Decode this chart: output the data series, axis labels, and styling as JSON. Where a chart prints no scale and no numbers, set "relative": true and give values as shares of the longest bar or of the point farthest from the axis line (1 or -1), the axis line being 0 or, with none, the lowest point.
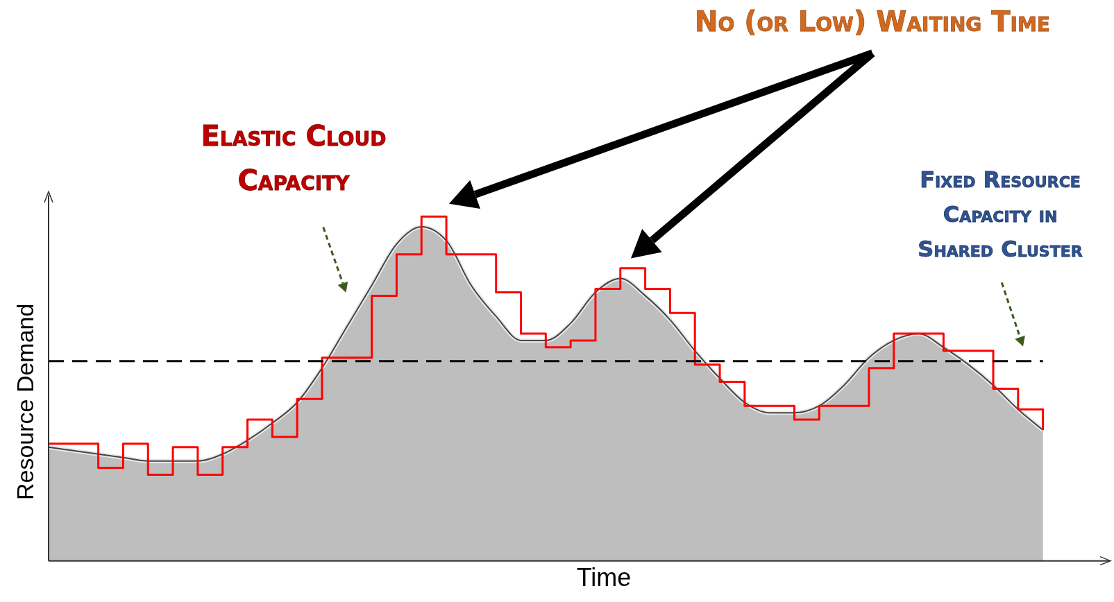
{
  "chart_data": {
    "type": "area",
    "xlabel": "Time",
    "ylabel": "Resource Demand",
    "relative": true,
    "marker": "none",
    "categories": [
      null,
      null,
      null,
      null,
      null,
      null,
      null,
      null,
      null,
      null,
      null,
      null,
      null,
      null,
      null,
      null,
      null,
      null,
      null,
      null,
      null,
      null,
      null,
      null,
      null,
      null,
      null,
      null,
      null,
      null,
      null,
      null,
      null,
      null,
      null,
      null,
      null,
      null,
      null,
      null,
      null
    ],
    "series": [
      {
        "color": "#bebebe",
        "values": [
          0.33,
          0.32,
          0.31,
          0.3,
          0.29,
          0.29,
          0.29,
          0.31,
          0.35,
          0.4,
          0.46,
          0.56,
          0.68,
          0.8,
          0.92,
          0.97,
          0.93,
          0.8,
          0.71,
          0.64,
          0.64,
          0.69,
          0.78,
          0.82,
          0.77,
          0.7,
          0.61,
          0.53,
          0.46,
          0.43,
          0.43,
          0.45,
          0.51,
          0.59,
          0.64,
          0.66,
          0.62,
          0.57,
          0.51,
          0.44,
          0.38
        ]
      },
      {
        "type": "step",
        "color": "#ff0000",
        "values": [
          0.34,
          0.34,
          0.27,
          0.34,
          0.25,
          0.33,
          0.25,
          0.33,
          0.41,
          0.36,
          0.47,
          0.59,
          0.59,
          0.77,
          0.89,
          1,
          0.89,
          0.89,
          0.78,
          0.66,
          0.62,
          0.64,
          0.79,
          0.85,
          0.79,
          0.72,
          0.57,
          0.52,
          0.45,
          0.45,
          0.41,
          0.45,
          0.45,
          0.56,
          0.66,
          0.66,
          0.61,
          0.61,
          0.5,
          0.44,
          0.38
        ]
      }
    ],
    "ref_lines": [
      {
        "axis": "y",
        "value": 0.58,
        "color": "#000000",
        "line_style": "dashed"
      }
    ],
    "annotations": [
      "No (or Low) Waiting Time",
      "Elastic Cloud Capacity",
      "Fixed Resource Capacity in Shared Cluster"
    ]
  }
}
